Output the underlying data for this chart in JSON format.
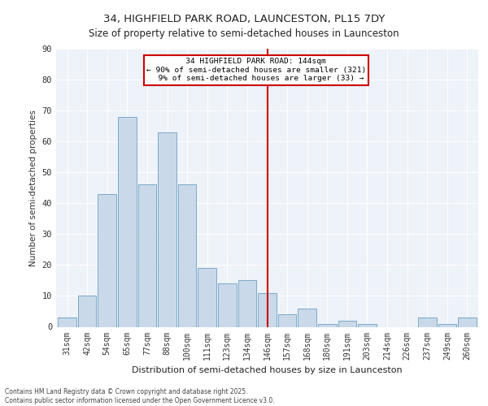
{
  "title1": "34, HIGHFIELD PARK ROAD, LAUNCESTON, PL15 7DY",
  "title2": "Size of property relative to semi-detached houses in Launceston",
  "xlabel": "Distribution of semi-detached houses by size in Launceston",
  "ylabel": "Number of semi-detached properties",
  "bar_labels": [
    "31sqm",
    "42sqm",
    "54sqm",
    "65sqm",
    "77sqm",
    "88sqm",
    "100sqm",
    "111sqm",
    "123sqm",
    "134sqm",
    "146sqm",
    "157sqm",
    "168sqm",
    "180sqm",
    "191sqm",
    "203sqm",
    "214sqm",
    "226sqm",
    "237sqm",
    "249sqm",
    "260sqm"
  ],
  "bar_values": [
    3,
    10,
    43,
    68,
    46,
    63,
    46,
    19,
    14,
    15,
    11,
    4,
    6,
    1,
    2,
    1,
    0,
    0,
    3,
    1,
    3
  ],
  "bar_color": "#c9d9ea",
  "bar_edge_color": "#7aaac8",
  "highlight_index": 10,
  "annotation_line1": "   34 HIGHFIELD PARK ROAD: 144sqm   ",
  "annotation_line2": "← 90% of semi-detached houses are smaller (321)",
  "annotation_line3": "  9% of semi-detached houses are larger (33) →",
  "background_color": "#eef2f9",
  "grid_color": "#ffffff",
  "footer_text": "Contains HM Land Registry data © Crown copyright and database right 2025.\nContains public sector information licensed under the Open Government Licence v3.0.",
  "ylim": [
    0,
    90
  ],
  "yticks": [
    0,
    10,
    20,
    30,
    40,
    50,
    60,
    70,
    80,
    90
  ]
}
